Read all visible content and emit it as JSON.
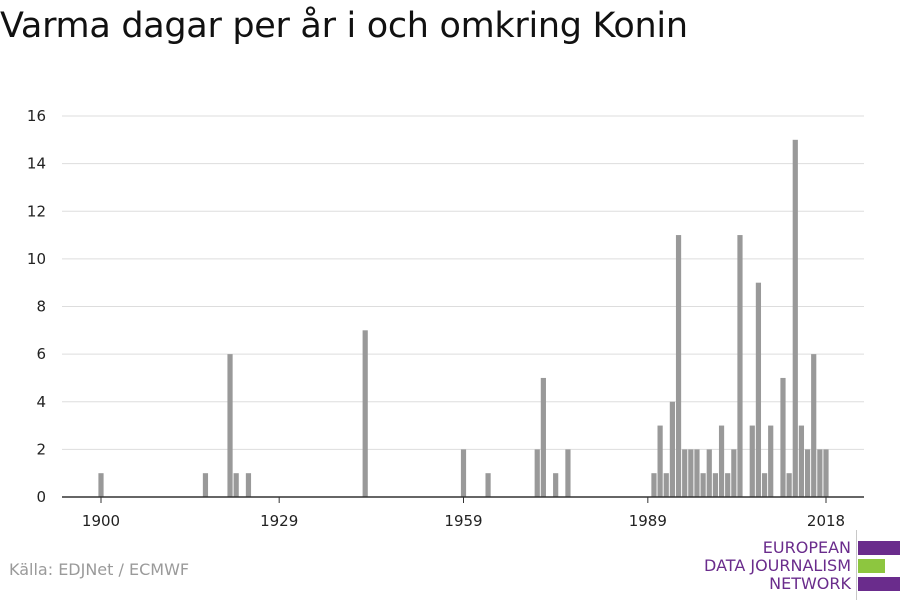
{
  "title": "Varma dagar per år i och omkring Konin",
  "source": "Källa: EDJNet / ECMWF",
  "logo": {
    "lines": [
      "EUROPEAN",
      "DATA JOURNALISM",
      "NETWORK"
    ],
    "colors": {
      "purple": "#6a2c8c",
      "green": "#8dc63f"
    }
  },
  "chart_data": {
    "type": "bar",
    "bar_color": "#999999",
    "grid": true,
    "xlim": [
      1900,
      2018
    ],
    "ylim": [
      0,
      16
    ],
    "x_ticks": [
      1900,
      1929,
      1959,
      1989,
      2018
    ],
    "y_ticks": [
      0,
      2,
      4,
      6,
      8,
      10,
      12,
      14,
      16
    ],
    "x": [
      1900,
      1917,
      1921,
      1922,
      1924,
      1943,
      1959,
      1963,
      1971,
      1972,
      1974,
      1976,
      1990,
      1991,
      1992,
      1993,
      1994,
      1995,
      1996,
      1997,
      1998,
      1999,
      2000,
      2001,
      2002,
      2003,
      2004,
      2006,
      2007,
      2008,
      2009,
      2011,
      2012,
      2013,
      2014,
      2015,
      2016,
      2017,
      2018
    ],
    "values": [
      1,
      1,
      6,
      1,
      1,
      7,
      2,
      1,
      2,
      5,
      1,
      2,
      1,
      3,
      1,
      4,
      11,
      2,
      2,
      2,
      1,
      2,
      1,
      3,
      1,
      2,
      11,
      3,
      9,
      1,
      3,
      5,
      1,
      15,
      3,
      2,
      6,
      2,
      2
    ]
  }
}
